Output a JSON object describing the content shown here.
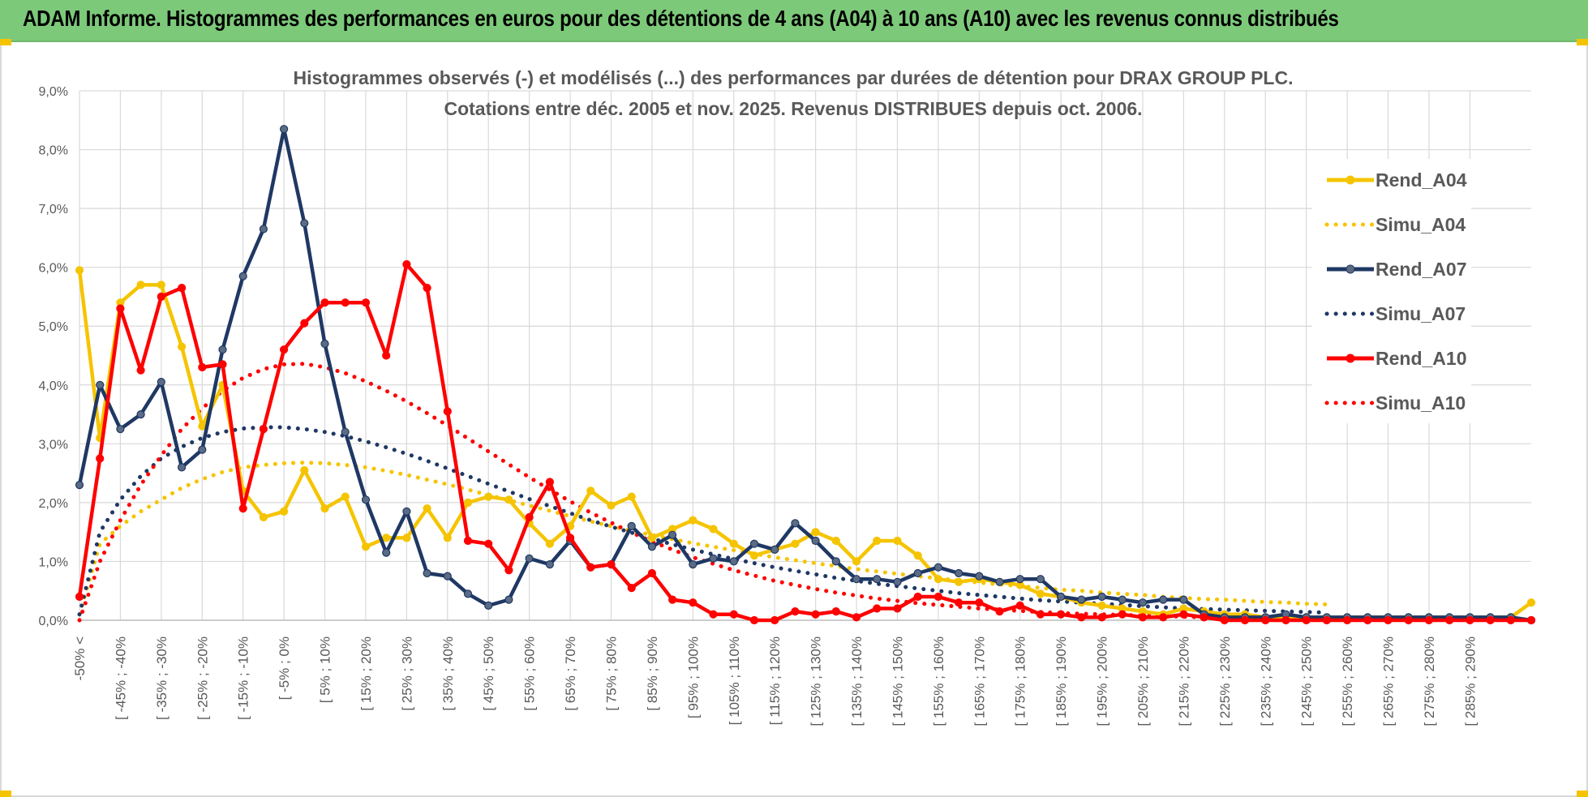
{
  "header": {
    "title": "ADAM Informe. Histogrammes des performances en euros pour des détentions de 4 ans (A04) à 10 ans (A10) avec les revenus connus distribués"
  },
  "chart_data": {
    "type": "line",
    "title_lines": [
      "Histogrammes observés (-) et modélisés (...) des performances par durées de détention pour DRAX GROUP PLC.",
      "Cotations entre déc. 2005 et nov. 2025.  Revenus DISTRIBUES depuis oct. 2006."
    ],
    "ylim": [
      0,
      9
    ],
    "y_ticks": [
      "0,0%",
      "1,0%",
      "2,0%",
      "3,0%",
      "4,0%",
      "5,0%",
      "6,0%",
      "7,0%",
      "8,0%",
      "9,0%"
    ],
    "x_tick_labels": [
      "-50% <",
      "[ -45% ; -40%",
      "[ -35% ; -30%",
      "[ -25% ; -20%",
      "[ -15% ; -10%",
      "[ -5% ; 0%",
      "[ 5% ; 10%",
      "[ 15% ; 20%",
      "[ 25% ; 30%",
      "[ 35% ; 40%",
      "[ 45% ; 50%",
      "[ 55% ; 60%",
      "[ 65% ; 70%",
      "[ 75% ; 80%",
      "[ 85% ; 90%",
      "[ 95% ; 100%",
      "[ 105% ; 110%",
      "[ 115% ; 120%",
      "[ 125% ; 130%",
      "[ 135% ; 140%",
      "[ 145% ; 150%",
      "[ 155% ; 160%",
      "[ 165% ; 170%",
      "[ 175% ; 180%",
      "[ 185% ; 190%",
      "[ 195% ; 200%",
      "[ 205% ; 210%",
      "[ 215% ; 220%",
      "[ 225% ; 230%",
      "[ 235% ; 240%",
      "[ 245% ; 250%",
      "[ 255% ; 260%",
      "[ 265% ; 270%",
      "[ 275% ; 280%",
      "[ 285% ; 290%"
    ],
    "legend_position": "right",
    "series": [
      {
        "name": "Rend_A04",
        "color": "#f5c400",
        "style": "solid",
        "markers": true,
        "values": [
          5.95,
          3.1,
          5.4,
          5.7,
          5.7,
          4.65,
          3.3,
          4.0,
          2.2,
          1.75,
          1.85,
          2.55,
          1.9,
          2.1,
          1.25,
          1.4,
          1.4,
          1.9,
          1.4,
          2.0,
          2.1,
          2.05,
          1.65,
          1.3,
          1.6,
          2.2,
          1.95,
          2.1,
          1.4,
          1.55,
          1.7,
          1.55,
          1.3,
          1.1,
          1.2,
          1.3,
          1.5,
          1.35,
          1.0,
          1.35,
          1.35,
          1.1,
          0.7,
          0.65,
          0.7,
          0.65,
          0.6,
          0.45,
          0.4,
          0.3,
          0.25,
          0.2,
          0.15,
          0.1,
          0.2,
          0.15,
          0.1,
          0.1,
          0.05,
          0.05,
          0.05,
          0.05,
          0.05,
          0.05,
          0.05,
          0.05,
          0.05,
          0.05,
          0.05,
          0.05,
          0.05,
          0.3
        ]
      },
      {
        "name": "Simu_A04",
        "color": "#f5c400",
        "style": "dotted",
        "markers": false,
        "values": [
          0.1,
          1.3,
          1.6,
          1.85,
          2.05,
          2.25,
          2.4,
          2.52,
          2.6,
          2.64,
          2.67,
          2.68,
          2.67,
          2.64,
          2.6,
          2.54,
          2.47,
          2.39,
          2.31,
          2.22,
          2.13,
          2.04,
          1.95,
          1.86,
          1.77,
          1.68,
          1.6,
          1.52,
          1.45,
          1.38,
          1.31,
          1.25,
          1.19,
          1.13,
          1.07,
          1.02,
          0.97,
          0.92,
          0.87,
          0.83,
          0.79,
          0.75,
          0.71,
          0.68,
          0.64,
          0.61,
          0.58,
          0.55,
          0.52,
          0.5,
          0.47,
          0.45,
          0.43,
          0.4,
          0.38,
          0.36,
          0.35,
          0.33,
          0.31,
          0.3,
          0.28,
          0.27
        ]
      },
      {
        "name": "Rend_A07",
        "color": "#1f3864",
        "style": "solid",
        "markers": true,
        "values": [
          2.3,
          4.0,
          3.25,
          3.5,
          4.05,
          2.6,
          2.9,
          4.6,
          5.85,
          6.65,
          8.35,
          6.75,
          4.7,
          3.2,
          2.05,
          1.15,
          1.85,
          0.8,
          0.75,
          0.45,
          0.25,
          0.35,
          1.05,
          0.95,
          1.35,
          0.9,
          0.95,
          1.6,
          1.25,
          1.45,
          0.95,
          1.05,
          1.0,
          1.3,
          1.2,
          1.65,
          1.35,
          1.0,
          0.7,
          0.7,
          0.65,
          0.8,
          0.9,
          0.8,
          0.75,
          0.65,
          0.7,
          0.7,
          0.4,
          0.35,
          0.4,
          0.35,
          0.3,
          0.35,
          0.35,
          0.1,
          0.05,
          0.05,
          0.05,
          0.1,
          0.05,
          0.05,
          0.05,
          0.05,
          0.05,
          0.05,
          0.05,
          0.05,
          0.05,
          0.05,
          0.05,
          0.0
        ]
      },
      {
        "name": "Simu_A07",
        "color": "#1f3864",
        "style": "dotted",
        "markers": false,
        "values": [
          0.1,
          1.5,
          2.05,
          2.45,
          2.75,
          2.95,
          3.1,
          3.2,
          3.26,
          3.28,
          3.28,
          3.25,
          3.2,
          3.13,
          3.04,
          2.94,
          2.83,
          2.71,
          2.58,
          2.45,
          2.32,
          2.19,
          2.06,
          1.94,
          1.82,
          1.7,
          1.59,
          1.49,
          1.39,
          1.29,
          1.2,
          1.12,
          1.04,
          0.97,
          0.9,
          0.84,
          0.78,
          0.72,
          0.67,
          0.62,
          0.58,
          0.54,
          0.5,
          0.46,
          0.43,
          0.4,
          0.37,
          0.34,
          0.32,
          0.3,
          0.28,
          0.26,
          0.24,
          0.22,
          0.2,
          0.19,
          0.18,
          0.17,
          0.16,
          0.15,
          0.14,
          0.13
        ]
      },
      {
        "name": "Rend_A10",
        "color": "#ff0000",
        "style": "solid",
        "markers": true,
        "values": [
          0.4,
          2.75,
          5.3,
          4.25,
          5.5,
          5.65,
          4.3,
          4.35,
          1.9,
          3.25,
          4.6,
          5.05,
          5.4,
          5.4,
          5.4,
          4.5,
          6.05,
          5.65,
          3.55,
          1.35,
          1.3,
          0.85,
          1.75,
          2.35,
          1.4,
          0.9,
          0.95,
          0.55,
          0.8,
          0.35,
          0.3,
          0.1,
          0.1,
          0.0,
          0.0,
          0.15,
          0.1,
          0.15,
          0.05,
          0.2,
          0.2,
          0.4,
          0.4,
          0.3,
          0.3,
          0.15,
          0.25,
          0.1,
          0.1,
          0.05,
          0.05,
          0.1,
          0.05,
          0.05,
          0.1,
          0.05,
          0.0,
          0.0,
          0.0,
          0.0,
          0.0,
          0.0,
          0.0,
          0.0,
          0.0,
          0.0,
          0.0,
          0.0,
          0.0,
          0.0,
          0.0,
          0.0
        ]
      },
      {
        "name": "Simu_A10",
        "color": "#ff0000",
        "style": "dotted",
        "markers": false,
        "values": [
          0.0,
          1.0,
          1.7,
          2.3,
          2.8,
          3.25,
          3.6,
          3.9,
          4.12,
          4.27,
          4.35,
          4.36,
          4.3,
          4.2,
          4.06,
          3.9,
          3.72,
          3.52,
          3.31,
          3.09,
          2.87,
          2.65,
          2.43,
          2.22,
          2.02,
          1.83,
          1.66,
          1.49,
          1.34,
          1.2,
          1.07,
          0.96,
          0.85,
          0.76,
          0.67,
          0.6,
          0.53,
          0.47,
          0.42,
          0.37,
          0.33,
          0.29,
          0.26,
          0.23,
          0.2,
          0.18,
          0.16,
          0.14,
          0.12,
          0.11,
          0.1,
          0.09,
          0.08,
          0.07,
          0.06,
          0.05,
          0.05,
          0.04,
          0.04,
          0.03,
          0.03,
          0.02
        ]
      }
    ]
  }
}
